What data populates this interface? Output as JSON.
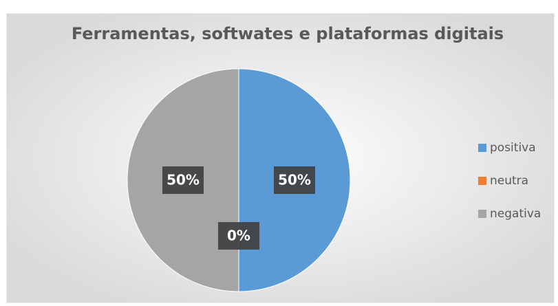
{
  "chart_data": {
    "type": "pie",
    "title": "Ferramentas, softwates e plataformas digitais",
    "categories": [
      "positiva",
      "neutra",
      "negativa"
    ],
    "values": [
      50,
      0,
      50
    ],
    "value_labels": [
      "50%",
      "0%",
      "50%"
    ],
    "colors": [
      "#5b9bd5",
      "#ed7d31",
      "#a5a5a5"
    ],
    "legend": "right"
  }
}
